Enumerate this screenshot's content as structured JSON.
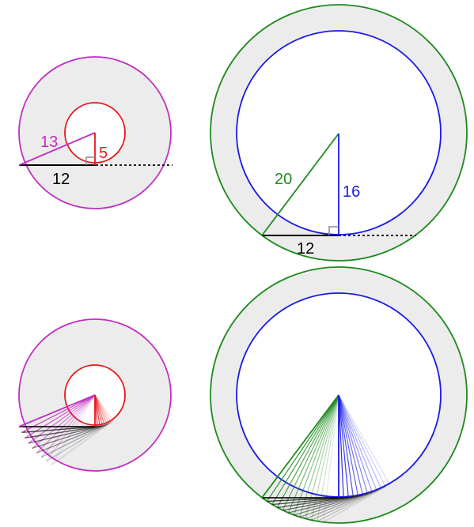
{
  "colors": {
    "annulus_fill": "#ececec",
    "outer_circle_small": "#c12fc1",
    "inner_circle_small": "#e8161c",
    "outer_circle_large": "#1e8a1e",
    "inner_circle_large": "#1a1ae6",
    "tangent_segment": "#000000",
    "right_angle_marker": "#8a8a8a",
    "dotted_extension": "#000000",
    "label_black": "#000000"
  },
  "labels": {
    "small_hypotenuse": "13",
    "small_leg": "5",
    "small_tangent": "12",
    "large_hypotenuse": "20",
    "large_leg": "16",
    "large_tangent": "12"
  },
  "panels": {
    "top_left": "annulus with outer radius 13, inner radius 5, half-chord 12",
    "top_right": "annulus with outer radius 20, inner radius 16, half-chord 12",
    "bottom_left": "small annulus with rotated tangent segments",
    "bottom_right": "large annulus with rotated tangent segments"
  }
}
